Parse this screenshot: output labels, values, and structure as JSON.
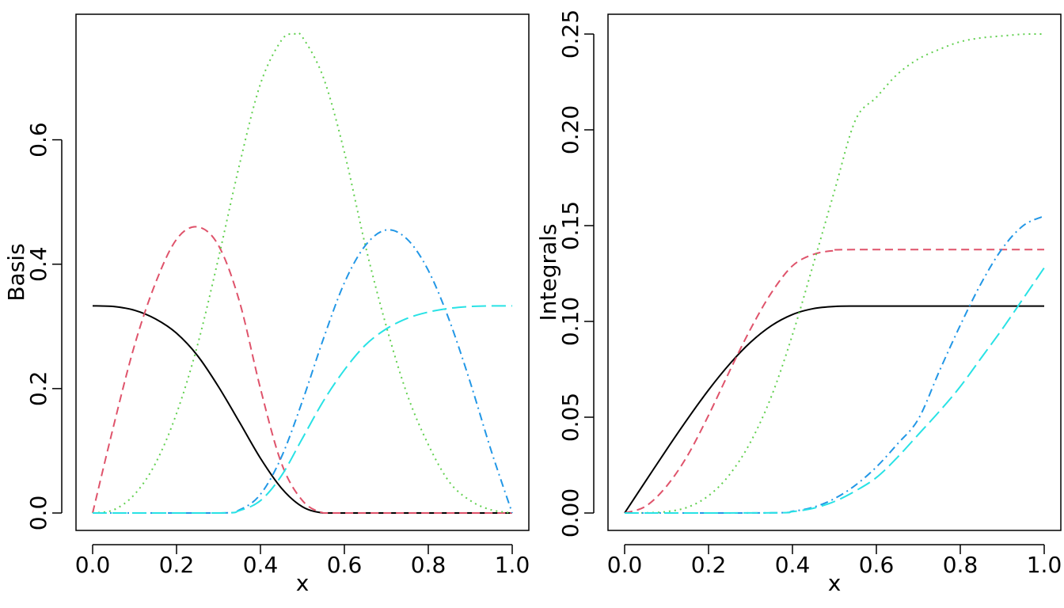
{
  "chart_data": [
    {
      "type": "line",
      "xlabel": "x",
      "ylabel": "Basis",
      "xlim": [
        0,
        1
      ],
      "ylim": [
        0,
        0.77
      ],
      "xticks": [
        0.0,
        0.2,
        0.4,
        0.6,
        0.8,
        1.0
      ],
      "xtick_labels": [
        "0.0",
        "0.2",
        "0.4",
        "0.6",
        "0.8",
        "1.0"
      ],
      "yticks": [
        0.0,
        0.2,
        0.4,
        0.6
      ],
      "ytick_labels": [
        "0.0",
        "0.2",
        "0.4",
        "0.6"
      ],
      "grid": false,
      "series": [
        {
          "color": "#000000",
          "dash": "solid",
          "x": [
            0.0,
            0.05,
            0.1,
            0.15,
            0.2,
            0.25,
            0.3,
            0.35,
            0.4,
            0.45,
            0.5,
            0.55,
            0.6,
            0.7,
            0.8,
            0.9,
            1.0
          ],
          "y": [
            0.333,
            0.332,
            0.326,
            0.312,
            0.289,
            0.253,
            0.203,
            0.146,
            0.088,
            0.04,
            0.01,
            0.0,
            0.0,
            0.0,
            0.0,
            0.0,
            0.0
          ]
        },
        {
          "color": "#DF536B",
          "dash": "dashed",
          "x": [
            0.0,
            0.05,
            0.1,
            0.15,
            0.2,
            0.25,
            0.3,
            0.35,
            0.4,
            0.45,
            0.5,
            0.55,
            0.6,
            0.7,
            0.8,
            0.9,
            1.0
          ],
          "y": [
            0.0,
            0.14,
            0.27,
            0.37,
            0.44,
            0.46,
            0.43,
            0.34,
            0.2,
            0.08,
            0.02,
            0.0,
            0.0,
            0.0,
            0.0,
            0.0,
            0.0
          ]
        },
        {
          "color": "#61D04F",
          "dash": "dotted",
          "x": [
            0.0,
            0.05,
            0.1,
            0.15,
            0.2,
            0.25,
            0.3,
            0.35,
            0.4,
            0.45,
            0.48,
            0.5,
            0.55,
            0.6,
            0.65,
            0.7,
            0.75,
            0.8,
            0.85,
            0.9,
            0.95,
            1.0
          ],
          "y": [
            0.0,
            0.005,
            0.03,
            0.08,
            0.16,
            0.27,
            0.41,
            0.56,
            0.69,
            0.76,
            0.77,
            0.765,
            0.7,
            0.58,
            0.43,
            0.3,
            0.19,
            0.11,
            0.05,
            0.02,
            0.005,
            0.0
          ]
        },
        {
          "color": "#2297E6",
          "dash": "dotdash",
          "x": [
            0.0,
            0.3,
            0.35,
            0.4,
            0.45,
            0.5,
            0.55,
            0.6,
            0.65,
            0.7,
            0.75,
            0.8,
            0.85,
            0.9,
            0.95,
            1.0
          ],
          "y": [
            0.0,
            0.0,
            0.005,
            0.03,
            0.09,
            0.18,
            0.28,
            0.37,
            0.43,
            0.455,
            0.44,
            0.39,
            0.31,
            0.21,
            0.1,
            0.0
          ]
        },
        {
          "color": "#28E2E5",
          "dash": "longdash",
          "x": [
            0.0,
            0.3,
            0.35,
            0.4,
            0.45,
            0.5,
            0.55,
            0.6,
            0.65,
            0.7,
            0.75,
            0.8,
            0.85,
            0.9,
            0.95,
            1.0
          ],
          "y": [
            0.0,
            0.0,
            0.004,
            0.02,
            0.06,
            0.12,
            0.18,
            0.23,
            0.27,
            0.296,
            0.313,
            0.323,
            0.329,
            0.332,
            0.333,
            0.333
          ]
        }
      ]
    },
    {
      "type": "line",
      "xlabel": "x",
      "ylabel": "Integrals",
      "xlim": [
        0,
        1
      ],
      "ylim": [
        0,
        0.25
      ],
      "xticks": [
        0.0,
        0.2,
        0.4,
        0.6,
        0.8,
        1.0
      ],
      "xtick_labels": [
        "0.0",
        "0.2",
        "0.4",
        "0.6",
        "0.8",
        "1.0"
      ],
      "yticks": [
        0.0,
        0.05,
        0.1,
        0.15,
        0.2,
        0.25
      ],
      "ytick_labels": [
        "0.00",
        "0.05",
        "0.10",
        "0.15",
        "0.20",
        "0.25"
      ],
      "grid": false,
      "series": [
        {
          "color": "#000000",
          "dash": "solid",
          "x": [
            0.0,
            0.05,
            0.1,
            0.15,
            0.2,
            0.25,
            0.3,
            0.35,
            0.4,
            0.45,
            0.5,
            0.55,
            0.6,
            1.0
          ],
          "y": [
            0.0,
            0.0166,
            0.0331,
            0.0491,
            0.0642,
            0.0777,
            0.0891,
            0.0978,
            0.1036,
            0.1067,
            0.1078,
            0.108,
            0.108,
            0.108
          ]
        },
        {
          "color": "#DF536B",
          "dash": "dashed",
          "x": [
            0.0,
            0.05,
            0.1,
            0.15,
            0.2,
            0.25,
            0.3,
            0.35,
            0.4,
            0.45,
            0.5,
            0.55,
            1.0
          ],
          "y": [
            0.0,
            0.0035,
            0.014,
            0.03,
            0.051,
            0.074,
            0.096,
            0.115,
            0.129,
            0.135,
            0.137,
            0.1375,
            0.1375
          ]
        },
        {
          "color": "#61D04F",
          "dash": "dotted",
          "x": [
            0.0,
            0.05,
            0.1,
            0.15,
            0.2,
            0.25,
            0.3,
            0.35,
            0.4,
            0.45,
            0.5,
            0.55,
            0.6,
            0.65,
            0.7,
            0.75,
            0.8,
            0.85,
            0.9,
            0.95,
            1.0
          ],
          "y": [
            0.0,
            0.0001,
            0.0007,
            0.003,
            0.009,
            0.02,
            0.037,
            0.061,
            0.093,
            0.13,
            0.168,
            0.205,
            0.217,
            0.229,
            0.237,
            0.242,
            0.246,
            0.248,
            0.249,
            0.2499,
            0.25
          ]
        },
        {
          "color": "#2297E6",
          "dash": "dotdash",
          "x": [
            0.0,
            0.35,
            0.4,
            0.45,
            0.5,
            0.55,
            0.6,
            0.65,
            0.7,
            0.75,
            0.8,
            0.85,
            0.9,
            0.95,
            1.0
          ],
          "y": [
            0.0,
            0.0001,
            0.0009,
            0.003,
            0.0075,
            0.0145,
            0.024,
            0.036,
            0.049,
            0.074,
            0.098,
            0.12,
            0.138,
            0.15,
            0.155
          ]
        },
        {
          "color": "#28E2E5",
          "dash": "longdash",
          "x": [
            0.0,
            0.35,
            0.4,
            0.45,
            0.5,
            0.55,
            0.6,
            0.65,
            0.7,
            0.75,
            0.8,
            0.85,
            0.9,
            0.95,
            1.0
          ],
          "y": [
            0.0,
            0.0001,
            0.0007,
            0.0025,
            0.006,
            0.0115,
            0.0185,
            0.029,
            0.041,
            0.053,
            0.066,
            0.081,
            0.096,
            0.112,
            0.128
          ]
        }
      ]
    }
  ]
}
